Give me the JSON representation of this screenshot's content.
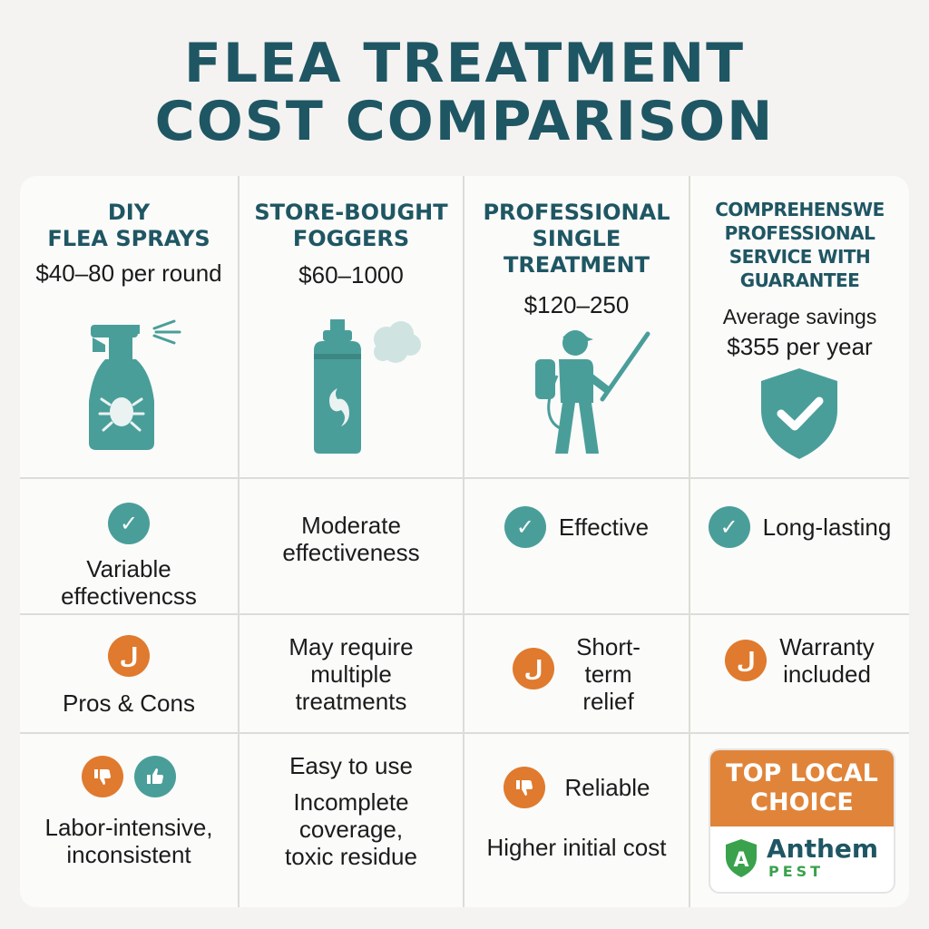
{
  "title": {
    "line1": "FLEA TREATMENT",
    "line2": "COST COMPARISON"
  },
  "columns": [
    {
      "heading": [
        "DIY",
        "FLEA SPRAYS"
      ],
      "price": "$40–80 per round",
      "icon": "spray-bottle-icon"
    },
    {
      "heading": [
        "STORE-BOUGHT",
        "FOGGERS"
      ],
      "price": "$60–1000",
      "icon": "fogger-can-icon"
    },
    {
      "heading": [
        "PROFESSIONAL",
        "SINGLE",
        "TREATMENT"
      ],
      "price": "$120–250",
      "icon": "exterminator-icon"
    },
    {
      "heading": [
        "COMPREHENSWE",
        "PROFESSIONAL",
        "SERVICE WITH",
        "GUARANTEE"
      ],
      "savings_label": "Average savings",
      "price": "$355 per year",
      "icon": "shield-check-icon"
    }
  ],
  "effectiveness": {
    "diy": [
      "Variable",
      "effectivencss"
    ],
    "foggers": [
      "Moderate",
      "effectiveness"
    ],
    "single": "Effective",
    "comprehensive": "Long-lasting"
  },
  "row3": {
    "diy": "Pros & Cons",
    "foggers": [
      "May require",
      "multiple",
      "treatments"
    ],
    "single": [
      "Short-",
      "term",
      "relief"
    ],
    "comprehensive": [
      "Warranty",
      "included"
    ]
  },
  "row4": {
    "diy": [
      "Labor-intensive,",
      "inconsistent"
    ],
    "foggers_top": "Easy to use",
    "foggers": [
      "Incomplete",
      "coverage,",
      "toxic residue"
    ],
    "single_top": "Reliable",
    "single": "Higher initial cost",
    "badge": {
      "line1": "TOP LOCAL",
      "line2": "CHOICE",
      "brand": "Anthem",
      "brand_sub": "PEST",
      "brand_letter": "A"
    }
  },
  "colors": {
    "title": "#1f5663",
    "teal": "#4a9e9a",
    "orange": "#e07a2e",
    "brand_green": "#3aa14d"
  }
}
